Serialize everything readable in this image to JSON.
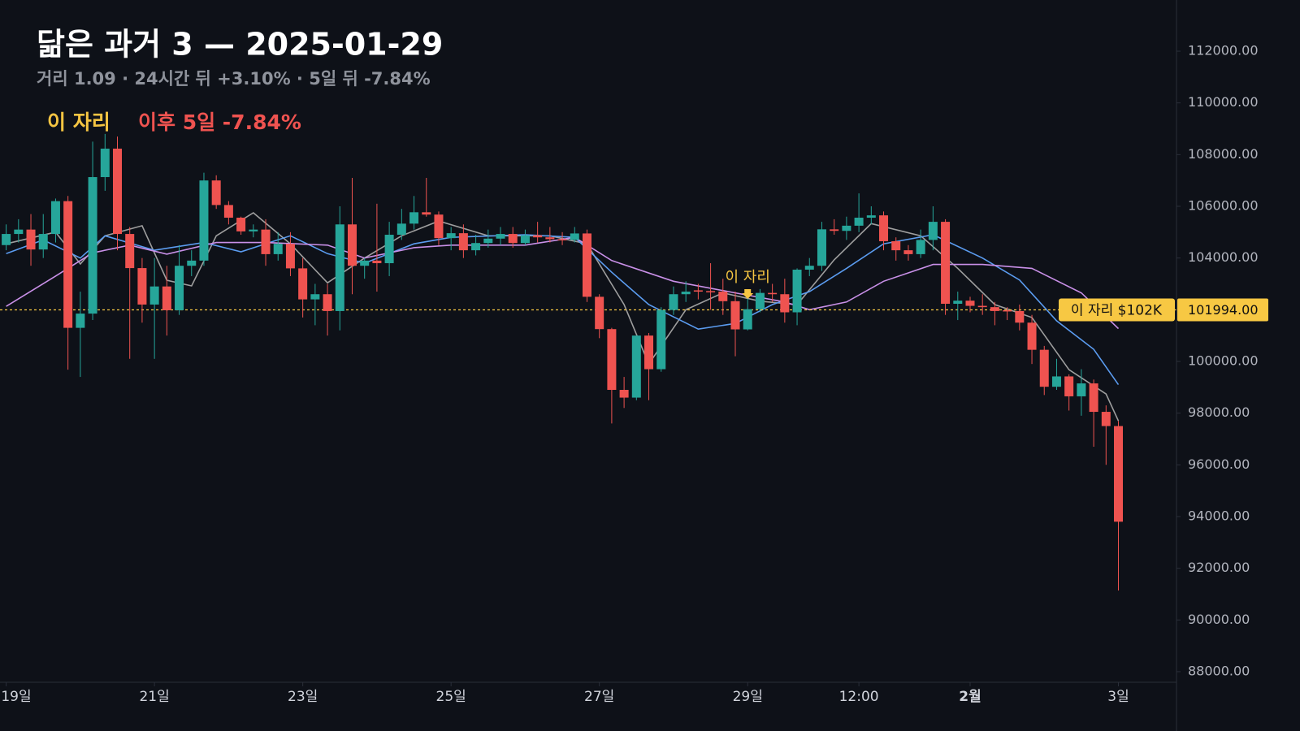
{
  "chart_data": {
    "type": "candlestick",
    "title": "닮은 과거 3 — 2025-01-29",
    "subtitle": "거리 1.09 · 24시간 뒤 +3.10% · 5일 뒤 -7.84%",
    "legend_marker": "이 자리",
    "legend_outcome": "이후 5일 -7.84%",
    "annotation": "이 자리",
    "up_color": "#26a69a",
    "down_color": "#ef5350",
    "grid": true,
    "xlim": [
      -0.5,
      94.7
    ],
    "xticks": [
      {
        "value": 0,
        "label": "19일"
      },
      {
        "value": 12,
        "label": "21일"
      },
      {
        "value": 24,
        "label": "23일"
      },
      {
        "value": 36,
        "label": "25일"
      },
      {
        "value": 48,
        "label": "27일"
      },
      {
        "value": 60,
        "label": "29일"
      },
      {
        "value": 69,
        "label": "12:00"
      },
      {
        "value": 78,
        "label": "2월"
      },
      {
        "value": 90,
        "label": "3일"
      }
    ],
    "ylim": [
      87590,
      113980
    ],
    "yticks": [
      {
        "value": 88000,
        "label": "88000.00"
      },
      {
        "value": 90000,
        "label": "90000.00"
      },
      {
        "value": 92000,
        "label": "92000.00"
      },
      {
        "value": 94000,
        "label": "94000.00"
      },
      {
        "value": 96000,
        "label": "96000.00"
      },
      {
        "value": 98000,
        "label": "98000.00"
      },
      {
        "value": 100000,
        "label": "100000.00"
      },
      {
        "value": 102000,
        "label": "102000.00"
      },
      {
        "value": 104000,
        "label": "104000.00"
      },
      {
        "value": 106000,
        "label": "106000.00"
      },
      {
        "value": 108000,
        "label": "108000.00"
      },
      {
        "value": 110000,
        "label": "110000.00"
      },
      {
        "value": 112000,
        "label": "112000.00"
      }
    ],
    "price_line": {
      "value": 101994,
      "label": "101994.00",
      "tag": "이 자리 $102K",
      "color": "#f7c843"
    },
    "open": [
      104500,
      104930,
      105100,
      104330,
      104930,
      106200,
      101300,
      101850,
      107130,
      108230,
      104930,
      103610,
      102200,
      102900,
      101980,
      103700,
      103900,
      107000,
      106050,
      105560,
      105030,
      105100,
      104150,
      104550,
      103600,
      102400,
      102600,
      101950,
      105300,
      103700,
      103900,
      103800,
      104900,
      105330,
      105770,
      105680,
      104770,
      104960,
      104300,
      104580,
      104750,
      104930,
      104580,
      104880,
      104800,
      104730,
      104700,
      104950,
      102500,
      101250,
      98900,
      98600,
      101000,
      99700,
      101990,
      102600,
      102750,
      102720,
      102700,
      102330,
      101240,
      102020,
      102650,
      102600,
      101900,
      103550,
      103700,
      105110,
      105050,
      105250,
      105560,
      105650,
      104650,
      104300,
      104150,
      104700,
      105400,
      102230,
      102350,
      102150,
      102100,
      101980,
      101950,
      101500,
      100450,
      99020,
      99420,
      98650,
      99150,
      98050,
      97500
    ],
    "high": [
      105300,
      105500,
      105700,
      105700,
      106300,
      106400,
      102700,
      108500,
      108800,
      108700,
      105200,
      104000,
      104000,
      103700,
      104500,
      104300,
      107300,
      107200,
      106200,
      105600,
      105300,
      105500,
      105000,
      105000,
      104000,
      103000,
      103000,
      106000,
      107100,
      104000,
      106100,
      105400,
      105900,
      106400,
      107100,
      105800,
      105200,
      105300,
      104900,
      105100,
      105200,
      105200,
      105100,
      105400,
      105200,
      105000,
      105200,
      105100,
      102600,
      101300,
      99400,
      101000,
      101100,
      102100,
      102900,
      103100,
      103000,
      103800,
      103200,
      102700,
      102500,
      102800,
      103000,
      103200,
      103600,
      104000,
      105400,
      105500,
      105600,
      106500,
      106000,
      105800,
      104800,
      104500,
      105100,
      106000,
      105500,
      102700,
      102500,
      102600,
      102300,
      102100,
      102200,
      101800,
      100600,
      100100,
      99500,
      99700,
      99300,
      98300,
      97700
    ],
    "low": [
      104300,
      104600,
      103700,
      104000,
      104600,
      99680,
      99400,
      101600,
      106600,
      104300,
      100100,
      101500,
      100100,
      101000,
      101800,
      103300,
      103700,
      105900,
      105300,
      104900,
      104800,
      103700,
      103900,
      103300,
      101700,
      101400,
      101000,
      101200,
      102600,
      103200,
      102700,
      103300,
      104700,
      105100,
      105600,
      104500,
      104300,
      104000,
      104100,
      104400,
      104500,
      104400,
      104500,
      104600,
      104600,
      104500,
      104600,
      102300,
      100900,
      97600,
      98200,
      98500,
      98500,
      99600,
      101800,
      102300,
      102400,
      102000,
      101800,
      100200,
      101200,
      101900,
      102300,
      101500,
      101400,
      103300,
      103500,
      104900,
      104700,
      105000,
      105300,
      104300,
      103900,
      103900,
      104000,
      104300,
      101800,
      101600,
      101900,
      101800,
      101400,
      101600,
      101200,
      99900,
      98700,
      98900,
      98100,
      97900,
      96700,
      96000,
      91140
    ],
    "close": [
      104930,
      105100,
      104330,
      104930,
      106200,
      101300,
      101850,
      107130,
      108230,
      104930,
      103610,
      102200,
      102900,
      101980,
      103700,
      103900,
      107000,
      106050,
      105560,
      105030,
      105100,
      104150,
      104550,
      103600,
      102400,
      102600,
      101950,
      105300,
      103700,
      103900,
      103800,
      104900,
      105330,
      105770,
      105680,
      104770,
      104960,
      104300,
      104580,
      104750,
      104930,
      104580,
      104880,
      104800,
      104730,
      104700,
      104950,
      102500,
      101250,
      98900,
      98600,
      101000,
      99700,
      101990,
      102600,
      102700,
      102700,
      102680,
      102330,
      101240,
      102020,
      102650,
      102600,
      101900,
      103550,
      103700,
      105110,
      105050,
      105250,
      105560,
      105650,
      104650,
      104300,
      104150,
      104700,
      105400,
      102230,
      102350,
      102150,
      102100,
      101950,
      101950,
      101500,
      100450,
      99020,
      99420,
      98650,
      99150,
      98050,
      97500,
      93800
    ],
    "overlays": [
      {
        "color": "#9e9e9e",
        "x": [
          0,
          4,
          6,
          8,
          11,
          13,
          15,
          17,
          20,
          23,
          26,
          29,
          32,
          35,
          39,
          44,
          47,
          50,
          52,
          55,
          58,
          61,
          64,
          67,
          70,
          74,
          77,
          80,
          83,
          86,
          89,
          90
        ],
        "values": [
          104550,
          105000,
          103770,
          104860,
          105250,
          103140,
          102920,
          104860,
          105750,
          104550,
          103040,
          104000,
          104860,
          105430,
          104860,
          104860,
          104550,
          102200,
          99900,
          102000,
          102650,
          102330,
          102200,
          103930,
          105330,
          104860,
          103600,
          102200,
          101700,
          99680,
          98740,
          97700
        ]
      },
      {
        "color": "#5b9cf0",
        "x": [
          0,
          3,
          6,
          8,
          12,
          16,
          19,
          23,
          26,
          29,
          33,
          36,
          42,
          46,
          49,
          52,
          56,
          59,
          62,
          65,
          68,
          71,
          75,
          79,
          82,
          85,
          88,
          90
        ],
        "values": [
          104170,
          104700,
          104000,
          104860,
          104300,
          104600,
          104240,
          104860,
          104170,
          103800,
          104550,
          104800,
          104900,
          104800,
          103450,
          102200,
          101250,
          101470,
          102200,
          102700,
          103600,
          104550,
          104900,
          104000,
          103150,
          101570,
          100470,
          99100
        ]
      },
      {
        "color": "#c990e8",
        "x": [
          0,
          4,
          7,
          10,
          13,
          17,
          21,
          26,
          29,
          33,
          36,
          42,
          46,
          49,
          54,
          59,
          63,
          65,
          68,
          71,
          75,
          79,
          83,
          87,
          90
        ],
        "values": [
          102130,
          103300,
          104200,
          104500,
          104150,
          104600,
          104600,
          104500,
          104000,
          104400,
          104500,
          104500,
          104800,
          103900,
          103100,
          102650,
          102300,
          102000,
          102300,
          103100,
          103750,
          103750,
          103600,
          102650,
          101270
        ]
      }
    ]
  }
}
